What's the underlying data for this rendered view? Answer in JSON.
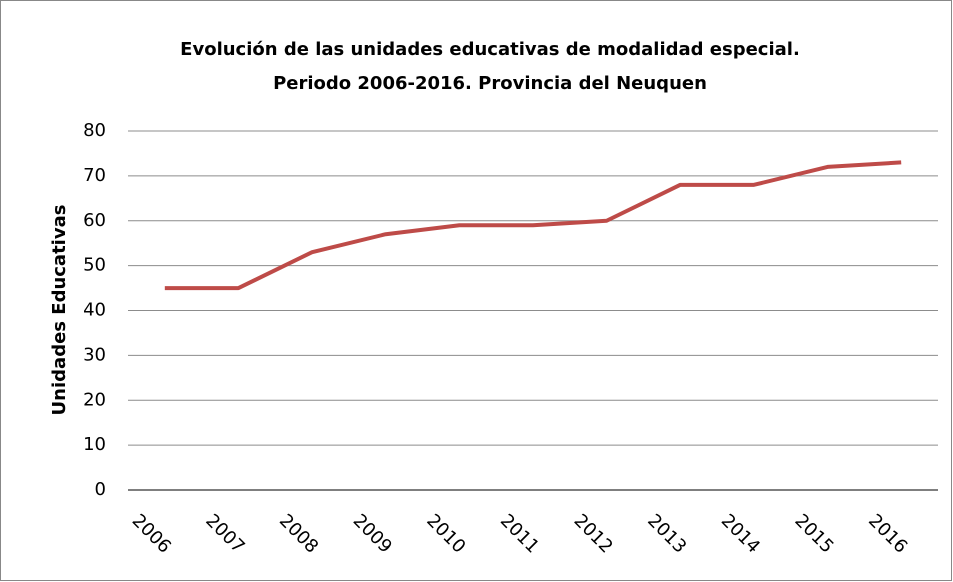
{
  "chart_data": {
    "type": "line",
    "title": [
      "Evolución de las unidades educativas de modalidad especial.",
      "Periodo 2006-2016. Provincia del Neuquen"
    ],
    "y_label": "Unidades Educativas",
    "categories": [
      "2006",
      "2007",
      "2008",
      "2009",
      "2010",
      "2011",
      "2012",
      "2013",
      "2014",
      "2015",
      "2016"
    ],
    "values": [
      45,
      45,
      53,
      57,
      59,
      59,
      60,
      68,
      68,
      72,
      73
    ],
    "color": "#be4b48",
    "ylim": [
      0,
      80
    ],
    "yticks": [
      0,
      10,
      20,
      30,
      40,
      50,
      60,
      70,
      80
    ],
    "grid": true
  }
}
